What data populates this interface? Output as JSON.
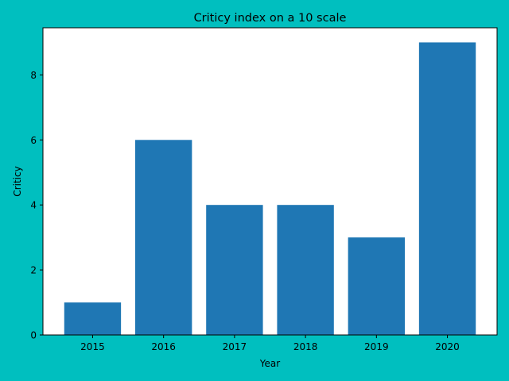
{
  "chart_data": {
    "type": "bar",
    "title": "Criticy index on a 10 scale",
    "xlabel": "Year",
    "ylabel": "Criticy",
    "categories": [
      "2015",
      "2016",
      "2017",
      "2018",
      "2019",
      "2020"
    ],
    "values": [
      1,
      6,
      4,
      4,
      3,
      9
    ],
    "ylim": [
      0,
      9.45
    ],
    "yticks": [
      0,
      2,
      4,
      6,
      8
    ],
    "grid": false,
    "colors": {
      "background": "#00bfbf",
      "plot_area": "#ffffff",
      "bar": "#1f77b4",
      "axis": "#000000"
    }
  }
}
